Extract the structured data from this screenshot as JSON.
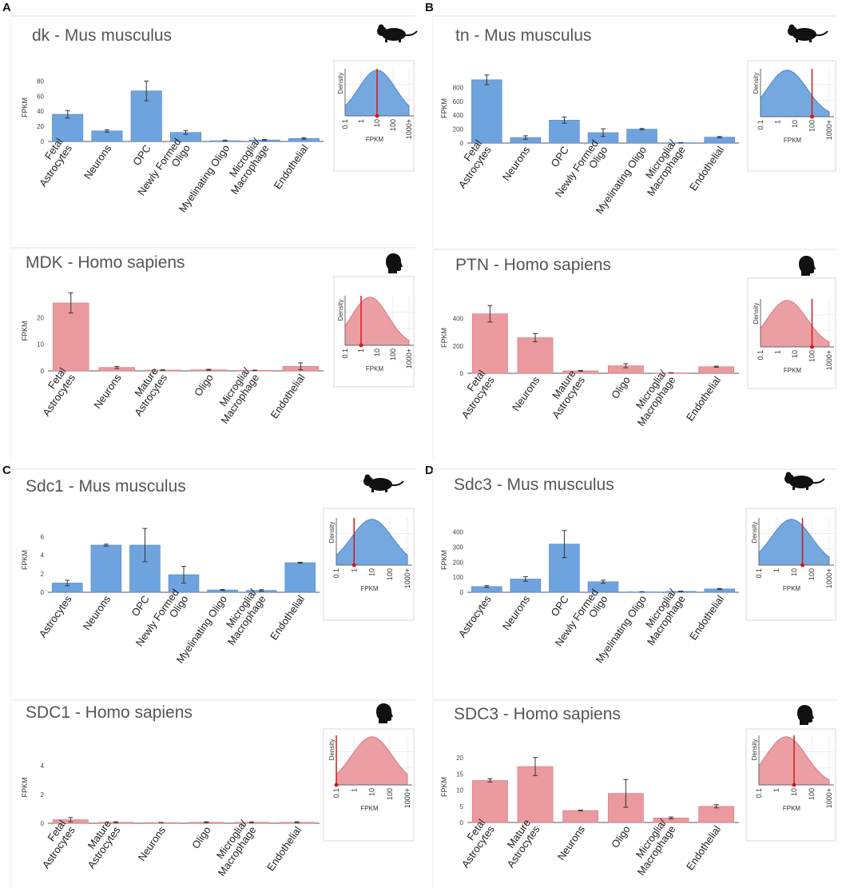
{
  "colors": {
    "mouse_bar": "#6fa3de",
    "mouse_bar_stroke": "#4a86cc",
    "human_bar": "#ea9a9e",
    "human_bar_stroke": "#d77980",
    "marker": "#cc1a1a",
    "axis": "#555555",
    "title": "#555555"
  },
  "density_ticks": [
    "0.1",
    "1",
    "10",
    "100",
    "1000+"
  ],
  "density_xlabel": "FPKM",
  "density_ylabel": "Density",
  "chart_data": [
    {
      "id": "A-mouse",
      "panel": "A",
      "type": "bar",
      "species": "mouse",
      "title": "dk - Mus musculus",
      "ylabel": "FPKM",
      "ylim": [
        0,
        90
      ],
      "yticks": [
        0,
        20,
        40,
        60,
        80
      ],
      "categories": [
        "Fetal\nAstrocytes",
        "Neurons",
        "OPC",
        "Newly Formed\nOligo",
        "Myelinating Oligo",
        "Microglia/\nMacrophage",
        "Endothelial"
      ],
      "values": [
        36,
        14,
        67,
        12,
        1,
        2,
        4
      ],
      "errors": [
        5,
        1.5,
        13,
        2.5,
        0.8,
        0.8,
        1
      ],
      "density": {
        "marker": 10,
        "curve": "right"
      }
    },
    {
      "id": "A-human",
      "panel": "A",
      "type": "bar",
      "species": "human",
      "title": "MDK - Homo sapiens",
      "ylabel": "FPKM",
      "ylim": [
        0,
        30
      ],
      "yticks": [
        0,
        10,
        20
      ],
      "categories": [
        "Fetal\nAstrocytes",
        "Neurons",
        "Mature\nAstrocytes",
        "Oligo",
        "Microglia/\nMacrophage",
        "Endothelial"
      ],
      "values": [
        25.5,
        1.3,
        0.3,
        0.4,
        0.2,
        1.7
      ],
      "errors": [
        3.8,
        0.4,
        0.1,
        0.2,
        0.1,
        1.3
      ],
      "density": {
        "marker": 1,
        "curve": "left"
      }
    },
    {
      "id": "B-mouse",
      "panel": "B",
      "type": "bar",
      "species": "mouse",
      "title": "tn - Mus musculus",
      "ylabel": "FPKM",
      "ylim": [
        0,
        1000
      ],
      "yticks": [
        0,
        200,
        400,
        600,
        800
      ],
      "categories": [
        "Fetal\nAstrocytes",
        "Neurons",
        "OPC",
        "Newly Formed\nOligo",
        "Myelinating Oligo",
        "Microglia/\nMacrophage",
        "Endothelial"
      ],
      "values": [
        910,
        80,
        330,
        150,
        200,
        5,
        85
      ],
      "errors": [
        70,
        25,
        45,
        55,
        10,
        2,
        10
      ],
      "density": {
        "marker": 100,
        "curve": "left"
      }
    },
    {
      "id": "B-human",
      "panel": "B",
      "type": "bar",
      "species": "human",
      "title": "PTN - Homo sapiens",
      "ylabel": "FPKM",
      "ylim": [
        0,
        520
      ],
      "yticks": [
        0,
        200,
        400
      ],
      "categories": [
        "Fetal\nAstrocytes",
        "Neurons",
        "Mature\nAstrocytes",
        "Oligo",
        "Microglia/\nMacrophage",
        "Endothelial"
      ],
      "values": [
        435,
        260,
        18,
        55,
        3,
        48
      ],
      "errors": [
        60,
        30,
        3,
        15,
        1,
        4
      ],
      "density": {
        "marker": 100,
        "curve": "left"
      }
    },
    {
      "id": "C-mouse",
      "panel": "C",
      "type": "bar",
      "species": "mouse",
      "title": "Sdc1 - Mus musculus",
      "ylabel": "FPKM",
      "ylim": [
        0,
        7
      ],
      "yticks": [
        0,
        2,
        4,
        6
      ],
      "categories": [
        "Astrocytes",
        "Neurons",
        "OPC",
        "Newly Formed\nOligo",
        "Myelinating Oligo",
        "Microglia/\nMacrophage",
        "Endothelial"
      ],
      "values": [
        1.0,
        5.1,
        5.1,
        1.9,
        0.25,
        0.2,
        3.2
      ],
      "errors": [
        0.3,
        0.1,
        1.8,
        0.9,
        0.05,
        0.08,
        0.05
      ],
      "density": {
        "marker": 1,
        "curve": "right"
      }
    },
    {
      "id": "C-human",
      "panel": "C",
      "type": "bar",
      "species": "human",
      "title": "SDC1 - Homo sapiens",
      "ylabel": "FPKM",
      "ylim": [
        0,
        5
      ],
      "yticks": [
        0,
        2,
        4
      ],
      "categories": [
        "Fetal\nAstrocytes",
        "Mature\nAstrocytes",
        "Neurons",
        "Oligo",
        "Microglia/\nMacrophage",
        "Endothelial"
      ],
      "values": [
        0.25,
        0.07,
        0.05,
        0.07,
        0.07,
        0.07
      ],
      "errors": [
        0.15,
        0.03,
        0.01,
        0.03,
        0.02,
        0.03
      ],
      "density": {
        "marker": 0.1,
        "curve": "right"
      }
    },
    {
      "id": "D-mouse",
      "panel": "D",
      "type": "bar",
      "species": "mouse",
      "title": "Sdc3 - Mus musculus",
      "ylabel": "FPKM",
      "ylim": [
        0,
        430
      ],
      "yticks": [
        0,
        100,
        200,
        300,
        400
      ],
      "categories": [
        "Astrocytes",
        "Neurons",
        "OPC",
        "Newly Formed\nOligo",
        "Myelinating Oligo",
        "Microglia/\nMacrophage",
        "Endothelial"
      ],
      "values": [
        38,
        88,
        320,
        70,
        3,
        6,
        22
      ],
      "errors": [
        6,
        15,
        90,
        10,
        1,
        2,
        3
      ],
      "density": {
        "marker": 30,
        "curve": "middle"
      }
    },
    {
      "id": "D-human",
      "panel": "D",
      "type": "bar",
      "species": "human",
      "title": "SDC3 - Homo sapiens",
      "ylabel": "FPKM",
      "ylim": [
        0,
        22
      ],
      "yticks": [
        0,
        5,
        10,
        15,
        20
      ],
      "categories": [
        "Fetal\nAstrocytes",
        "Mature\nAstrocytes",
        "Neurons",
        "Oligo",
        "Microglia/\nMacrophage",
        "Endothelial"
      ],
      "values": [
        13,
        17.3,
        3.7,
        9,
        1.4,
        5
      ],
      "errors": [
        0.5,
        2.8,
        0.1,
        4.3,
        0.3,
        0.5
      ],
      "density": {
        "marker": 10,
        "curve": "left"
      }
    }
  ]
}
